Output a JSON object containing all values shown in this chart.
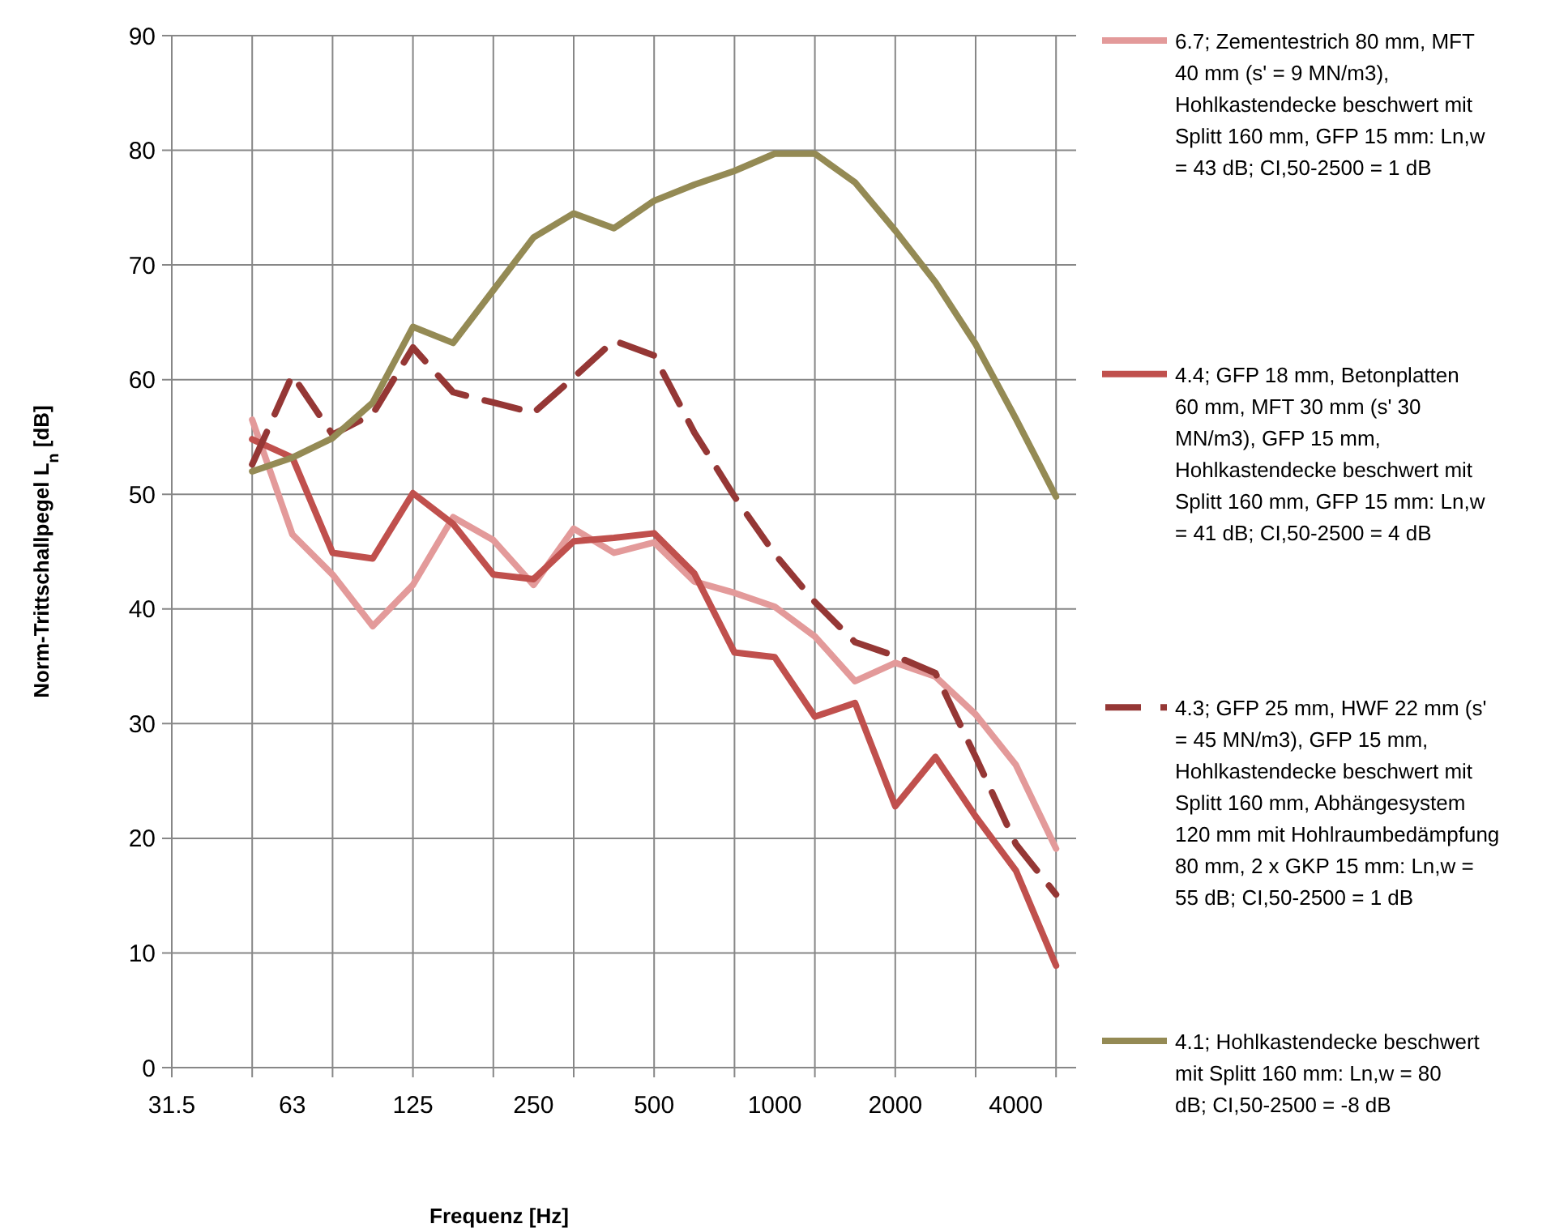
{
  "chart_data": {
    "type": "line",
    "xlabel": "Frequenz [Hz]",
    "ylabel": "Norm-Trittschallpegel L$_{n}$ [dB]",
    "categories": [
      "31.5",
      null,
      null,
      "63",
      null,
      null,
      "125",
      null,
      null,
      "250",
      null,
      null,
      "500",
      null,
      null,
      "1000",
      null,
      null,
      "2000",
      null,
      null,
      "4000",
      null
    ],
    "ylim": [
      0,
      90
    ],
    "yticks": [
      0,
      10,
      20,
      30,
      40,
      50,
      60,
      70,
      80,
      90
    ],
    "grid": true,
    "legend": "right",
    "series": [
      {
        "name": "6.7; Zementestrich 80 mm, MFT 40 mm (s' = 9 MN/m3), Hohlkastendecke beschwert mit Splitt 160 mm, GFP 15 mm: Ln,w = 43 dB; CI,50-2500 = 1 dB",
        "color": "#e39a9a",
        "line_style": "solid",
        "values": [
          null,
          null,
          56.5,
          46.5,
          43.0,
          38.5,
          42.1,
          48.0,
          46.0,
          42.1,
          47.0,
          44.9,
          45.8,
          42.4,
          41.4,
          40.2,
          37.6,
          33.7,
          35.3,
          34.1,
          30.8,
          26.4,
          19.1
        ]
      },
      {
        "name": "4.4; GFP 18 mm, Betonplatten 60 mm, MFT 30 mm (s' 30 MN/m3), GFP 15 mm, Hohlkastendecke beschwert mit Splitt 160 mm, GFP 15 mm: Ln,w = 41 dB; CI,50-2500 = 4 dB",
        "color": "#c0504d",
        "line_style": "solid",
        "values": [
          null,
          null,
          54.8,
          53.2,
          44.9,
          44.4,
          50.1,
          47.4,
          43.0,
          42.6,
          45.9,
          46.2,
          46.6,
          43.1,
          36.2,
          35.8,
          30.6,
          31.8,
          22.8,
          27.1,
          21.9,
          17.2,
          8.9
        ]
      },
      {
        "name": "4.3; GFP 25 mm, HWF 22 mm (s' = 45 MN/m3), GFP 15 mm, Hohlkastendecke beschwert mit Splitt 160 mm, Abhängesystem 120 mm mit Hohlraumbedämpfung 80 mm, 2 x GKP 15 mm: Ln,w = 55 dB; CI,50-2500 = 1 dB",
        "color": "#953735",
        "line_style": "dashed",
        "values": [
          null,
          null,
          52.6,
          60.4,
          55.2,
          57.0,
          62.8,
          58.9,
          58.0,
          57.1,
          60.2,
          63.4,
          62.1,
          55.4,
          49.8,
          44.8,
          40.6,
          37.1,
          35.9,
          34.4,
          27.1,
          19.5,
          15.1
        ]
      },
      {
        "name": "4.1; Hohlkastendecke beschwert mit Splitt 160 mm: Ln,w = 80 dB; CI,50-2500 = -8 dB",
        "color": "#948a54",
        "line_style": "solid",
        "values": [
          null,
          null,
          52.0,
          53.2,
          54.9,
          58.0,
          64.6,
          63.2,
          67.8,
          72.4,
          74.5,
          73.2,
          75.6,
          77.0,
          78.2,
          79.7,
          79.7,
          77.2,
          73.0,
          68.5,
          63.1,
          56.6,
          49.8
        ]
      }
    ]
  }
}
